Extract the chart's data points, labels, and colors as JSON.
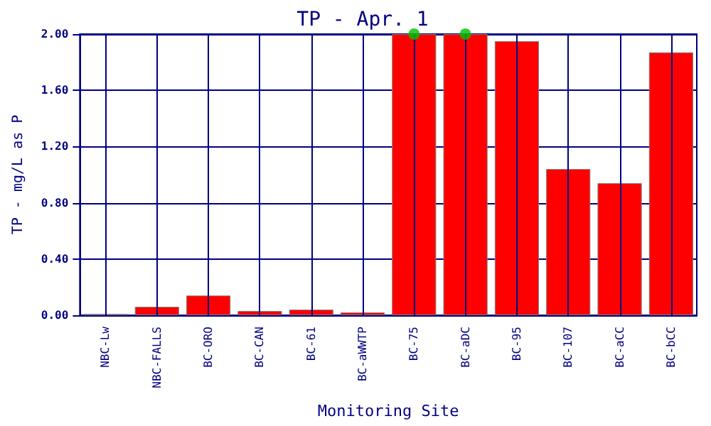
{
  "chart_data": {
    "type": "bar",
    "title": "TP - Apr. 1",
    "xlabel": "Monitoring Site",
    "ylabel": "TP - mg/L as P",
    "categories": [
      "NBC-Lw",
      "NBC-FALLS",
      "BC-ORO",
      "BC-CAN",
      "BC-61",
      "BC-aWWTP",
      "BC-75",
      "BC-aDC",
      "BC-95",
      "BC-107",
      "BC-aCC",
      "BC-bCC"
    ],
    "series": [
      {
        "color": "#ff0000",
        "values": [
          0.01,
          0.06,
          0.14,
          0.03,
          0.04,
          0.02,
          2.0,
          2.0,
          1.95,
          1.04,
          0.94,
          1.87
        ]
      },
      {
        "type": "scatter",
        "color": "#00c000",
        "marker": "circle",
        "x": [
          "BC-75",
          "BC-aDC"
        ],
        "values": [
          2.0,
          2.0
        ]
      }
    ],
    "ylim": [
      0,
      2.0
    ],
    "yticks": [
      {
        "value": 0,
        "label": "0.00"
      },
      {
        "value": 0.4,
        "label": "0.40"
      },
      {
        "value": 0.8,
        "label": "0.80"
      },
      {
        "value": 1.2,
        "label": "1.20"
      },
      {
        "value": 1.6,
        "label": "1.60"
      },
      {
        "value": 2.0,
        "label": "2.00"
      }
    ],
    "grid": true
  }
}
